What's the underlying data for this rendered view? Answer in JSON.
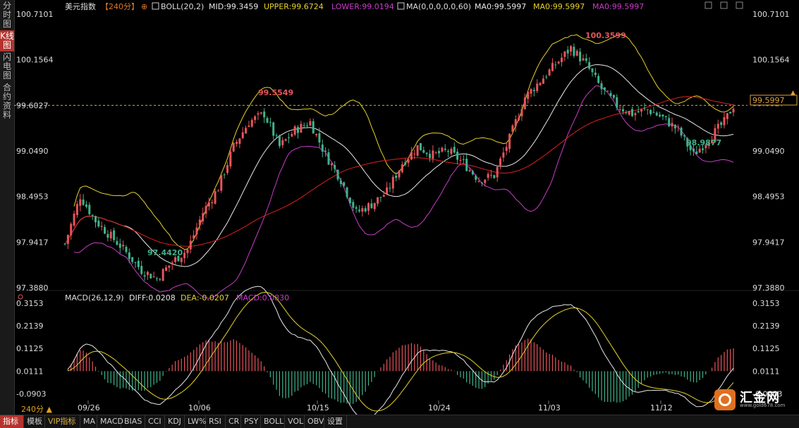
{
  "sidebar": {
    "tabs": [
      {
        "label": "分时图",
        "active": false
      },
      {
        "label": "K线图",
        "active": true
      },
      {
        "label": "闪电图",
        "active": false
      },
      {
        "label": "合约资料",
        "active": false
      }
    ]
  },
  "header": {
    "symbol": "美元指数",
    "period": "【240分】",
    "boll_label": "BOLL(20,2)",
    "mid_label": "MID:99.3459",
    "upper_label": "UPPER:99.6724",
    "lower_label": "LOWER:99.0194",
    "ma_label": "MA(0,0,0,0,0,60)",
    "ma0a_label": "MA0:99.5997",
    "ma0b_label": "MA0:99.5997",
    "ma0c_label": "MA0:99.5997"
  },
  "price_axis": {
    "ticks": [
      "100.7101",
      "100.1564",
      "99.6027",
      "99.0490",
      "98.4953",
      "97.9417",
      "97.3880"
    ],
    "current_price": "99.5997",
    "ref_price": "99.6027"
  },
  "annotations": {
    "high": "100.3599",
    "mid_high": "99.5549",
    "low1": "97.4420",
    "low2": "98.9877"
  },
  "macd": {
    "title": "MACD(26,12,9)",
    "diff_label": "DIFF:0.0208",
    "dea_label": "DEA:-0.0207",
    "macd_label": "MACD:0.0830",
    "ticks": [
      "0.3153",
      "0.2139",
      "0.1125",
      "0.0111",
      "-0.0903"
    ]
  },
  "x_axis": {
    "dates": [
      "09/26",
      "10/06",
      "10/15",
      "10/24",
      "11/03",
      "11/12"
    ]
  },
  "period_selector": "240分 ▲",
  "bottom_tabs": [
    "指标",
    "模板",
    "VIP指标",
    "MA",
    "MACD",
    "BIAS",
    "CCI",
    "KDJ",
    "LW%",
    "RSI",
    "CR",
    "PSY",
    "BOLL",
    "VOL",
    "OBV",
    "设置"
  ],
  "logo": {
    "name": "汇金网",
    "url": "www.gold678.com"
  },
  "colors": {
    "up": "#e8545b",
    "down": "#3fb38a",
    "boll_upper": "#e6d22e",
    "boll_mid": "#e8e8e8",
    "boll_lower": "#c83cc8",
    "ma60": "#e02020",
    "ref_line": "#e0a040"
  },
  "chart_data": {
    "type": "candlestick",
    "title": "美元指数",
    "period": "240分",
    "x": [
      "09/26",
      "10/06",
      "10/15",
      "10/24",
      "11/03",
      "11/12"
    ],
    "ylim": [
      97.388,
      100.7101
    ],
    "series": [
      {
        "name": "BOLL UPPER",
        "last": 99.6724
      },
      {
        "name": "BOLL MID",
        "last": 99.3459
      },
      {
        "name": "BOLL LOWER",
        "last": 99.0194
      },
      {
        "name": "MA0",
        "last": 99.5997
      }
    ],
    "key_points": [
      {
        "label": "high",
        "value": 100.3599,
        "date": "11/03"
      },
      {
        "label": "peak",
        "value": 99.5549,
        "date": "10/15"
      },
      {
        "label": "low",
        "value": 97.442,
        "date": "09/26"
      },
      {
        "label": "low",
        "value": 98.9877,
        "date": "11/12"
      }
    ],
    "macd": {
      "diff": 0.0208,
      "dea": -0.0207,
      "macd": 0.083,
      "ylim": [
        -0.0903,
        0.3153
      ]
    }
  }
}
